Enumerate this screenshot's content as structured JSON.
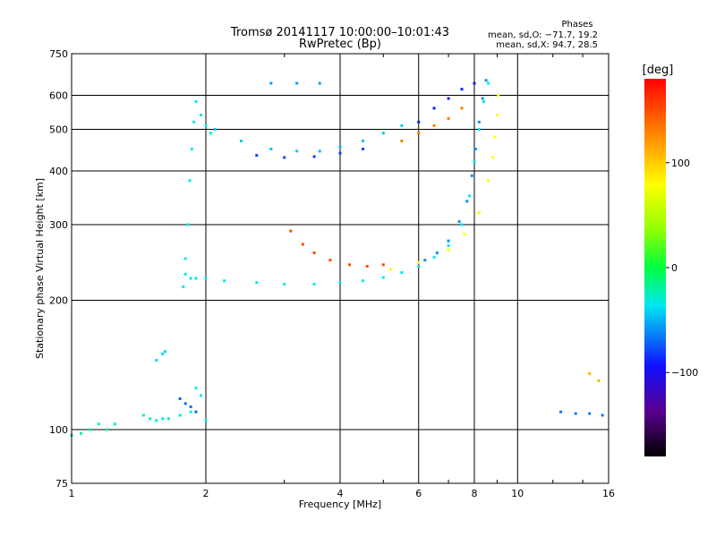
{
  "chart_data": {
    "type": "scatter",
    "title": "Tromsø 20141117 10:00:00–10:01:43",
    "subtitle": "RwPretec (Bp)",
    "stats": {
      "heading": "Phases",
      "line1": "mean, sd,O: −71.7, 19.2",
      "line2": "mean, sd,X:  94.7, 28.5"
    },
    "xlabel": "Frequency [MHz]",
    "ylabel": "Stationary phase Virtual Height [km]",
    "x_scale": "log",
    "y_scale": "log",
    "xlim": [
      1,
      16
    ],
    "ylim": [
      75,
      750
    ],
    "x_ticks": [
      {
        "v": 1,
        "label": "1"
      },
      {
        "v": 2,
        "label": "2"
      },
      {
        "v": 4,
        "label": "4"
      },
      {
        "v": 6,
        "label": "6"
      },
      {
        "v": 8,
        "label": "8"
      },
      {
        "v": 10,
        "label": "10"
      },
      {
        "v": 16,
        "label": "16"
      }
    ],
    "y_ticks": [
      {
        "v": 75,
        "label": "75"
      },
      {
        "v": 100,
        "label": "100"
      },
      {
        "v": 200,
        "label": "200"
      },
      {
        "v": 300,
        "label": "300"
      },
      {
        "v": 400,
        "label": "400"
      },
      {
        "v": 500,
        "label": "500"
      },
      {
        "v": 600,
        "label": "600"
      },
      {
        "v": 750,
        "label": "750"
      }
    ],
    "grid": true,
    "colorbar": {
      "label": "[deg]",
      "range": [
        -180,
        180
      ],
      "ticks": [
        {
          "v": 100,
          "label": "100"
        },
        {
          "v": 0,
          "label": "0"
        },
        {
          "v": -100,
          "label": "−100"
        }
      ]
    },
    "traces": [
      {
        "phase": -20,
        "points": [
          [
            1.0,
            97
          ],
          [
            1.05,
            98
          ],
          [
            1.1,
            100
          ],
          [
            1.15,
            103
          ],
          [
            1.2,
            100
          ],
          [
            1.25,
            103
          ]
        ]
      },
      {
        "phase": -30,
        "points": [
          [
            1.45,
            108
          ],
          [
            1.5,
            106
          ],
          [
            1.55,
            105
          ],
          [
            1.6,
            106
          ],
          [
            1.65,
            106
          ],
          [
            1.75,
            108
          ],
          [
            1.85,
            110
          ],
          [
            1.9,
            125
          ],
          [
            1.95,
            120
          ],
          [
            2.0,
            105
          ]
        ]
      },
      {
        "phase": -40,
        "points": [
          [
            1.55,
            145
          ],
          [
            1.6,
            150
          ],
          [
            1.62,
            152
          ]
        ]
      },
      {
        "phase": -70,
        "points": [
          [
            1.75,
            118
          ],
          [
            1.8,
            115
          ],
          [
            1.85,
            113
          ],
          [
            1.9,
            110
          ]
        ]
      },
      {
        "phase": -35,
        "points": [
          [
            1.78,
            215
          ],
          [
            1.8,
            250
          ],
          [
            1.82,
            300
          ],
          [
            1.84,
            380
          ],
          [
            1.86,
            450
          ],
          [
            1.88,
            520
          ],
          [
            1.9,
            580
          ],
          [
            1.95,
            540
          ],
          [
            2.0,
            510
          ],
          [
            2.05,
            490
          ]
        ]
      },
      {
        "phase": -35,
        "points": [
          [
            1.8,
            230
          ],
          [
            1.85,
            225
          ],
          [
            1.9,
            225
          ],
          [
            2.0,
            225
          ],
          [
            2.2,
            222
          ],
          [
            2.6,
            220
          ],
          [
            3.0,
            218
          ],
          [
            3.5,
            218
          ],
          [
            4.0,
            220
          ],
          [
            4.5,
            222
          ],
          [
            5.0,
            226
          ],
          [
            5.5,
            232
          ],
          [
            6.0,
            240
          ],
          [
            6.5,
            252
          ],
          [
            7.0,
            268
          ],
          [
            7.5,
            300
          ],
          [
            7.8,
            350
          ],
          [
            8.0,
            420
          ],
          [
            8.2,
            500
          ],
          [
            8.4,
            580
          ],
          [
            8.6,
            640
          ]
        ]
      },
      {
        "phase": -60,
        "points": [
          [
            6.2,
            248
          ],
          [
            6.6,
            258
          ],
          [
            7.0,
            275
          ],
          [
            7.4,
            305
          ],
          [
            7.7,
            340
          ],
          [
            7.9,
            390
          ],
          [
            8.05,
            450
          ],
          [
            8.2,
            520
          ],
          [
            8.35,
            590
          ],
          [
            8.5,
            650
          ]
        ]
      },
      {
        "phase": 150,
        "points": [
          [
            3.1,
            290
          ],
          [
            3.3,
            270
          ],
          [
            3.5,
            258
          ],
          [
            3.8,
            248
          ],
          [
            4.2,
            242
          ],
          [
            4.6,
            240
          ],
          [
            5.0,
            242
          ]
        ]
      },
      {
        "phase": 80,
        "points": [
          [
            5.2,
            236
          ],
          [
            6.0,
            245
          ],
          [
            7.0,
            262
          ],
          [
            7.6,
            285
          ],
          [
            8.2,
            320
          ],
          [
            8.6,
            380
          ],
          [
            8.8,
            430
          ],
          [
            8.9,
            480
          ],
          [
            9.0,
            540
          ],
          [
            9.05,
            600
          ]
        ]
      },
      {
        "phase": -45,
        "points": [
          [
            2.1,
            500
          ],
          [
            2.4,
            470
          ],
          [
            2.8,
            450
          ],
          [
            3.2,
            445
          ],
          [
            3.6,
            445
          ],
          [
            4.0,
            455
          ],
          [
            4.5,
            470
          ],
          [
            5.0,
            490
          ],
          [
            5.5,
            510
          ]
        ]
      },
      {
        "phase": -80,
        "points": [
          [
            2.6,
            435
          ],
          [
            3.0,
            430
          ],
          [
            3.5,
            432
          ],
          [
            4.0,
            440
          ],
          [
            4.5,
            450
          ]
        ]
      },
      {
        "phase": -90,
        "points": [
          [
            6.0,
            520
          ],
          [
            6.5,
            560
          ],
          [
            7.0,
            590
          ],
          [
            7.5,
            620
          ],
          [
            8.0,
            640
          ]
        ]
      },
      {
        "phase": 130,
        "points": [
          [
            5.5,
            470
          ],
          [
            6.0,
            490
          ],
          [
            6.5,
            510
          ],
          [
            7.0,
            530
          ],
          [
            7.5,
            560
          ]
        ]
      },
      {
        "phase": -55,
        "points": [
          [
            2.8,
            640
          ],
          [
            3.2,
            640
          ],
          [
            3.6,
            640
          ]
        ]
      },
      {
        "phase": -65,
        "points": [
          [
            12.5,
            110
          ],
          [
            13.5,
            109
          ],
          [
            14.5,
            109
          ],
          [
            15.5,
            108
          ]
        ]
      },
      {
        "phase": 110,
        "points": [
          [
            14.5,
            135
          ],
          [
            15.2,
            130
          ]
        ]
      }
    ]
  }
}
